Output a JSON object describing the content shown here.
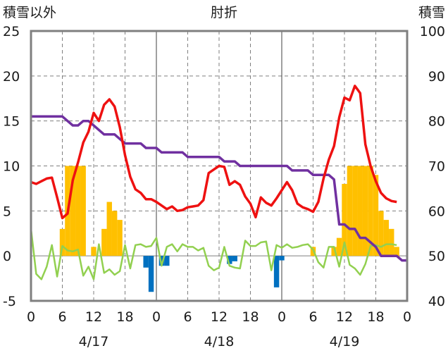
{
  "chart_data": {
    "type": "combo",
    "title": "肘折",
    "left_axis_label": "積雪以外",
    "right_axis_label": "積雪",
    "left_ylim": [
      -5,
      25
    ],
    "left_yticks": [
      -5,
      0,
      5,
      10,
      15,
      20,
      25
    ],
    "right_ylim": [
      40,
      100
    ],
    "right_yticks": [
      40,
      50,
      60,
      70,
      80,
      90,
      100
    ],
    "x_hour_range": [
      0,
      72
    ],
    "x_tick_labels": [
      "0",
      "6",
      "12",
      "18",
      "0",
      "6",
      "12",
      "18",
      "0",
      "6",
      "12",
      "18",
      "0"
    ],
    "date_labels": [
      "4/17",
      "4/18",
      "4/19"
    ],
    "colors": {
      "temperature": "#ee1111",
      "snow_depth": "#7030a0",
      "wind": "#92d050",
      "snowfall": "#ffc000",
      "precipitation": "#0070c0",
      "axis": "#7f7f7f",
      "grid": "#7f7f7f"
    },
    "series": [
      {
        "name": "temperature",
        "axis": "left",
        "values": [
          8.2,
          8.0,
          8.3,
          8.6,
          8.7,
          6.5,
          4.2,
          4.7,
          8.4,
          10.4,
          12.6,
          13.8,
          15.9,
          15.0,
          16.8,
          17.4,
          16.6,
          14.3,
          11.2,
          8.8,
          7.4,
          7.0,
          6.3,
          6.3,
          6.0,
          5.6,
          5.2,
          5.5,
          5.0,
          5.1,
          5.4,
          5.5,
          5.6,
          6.2,
          9.2,
          9.6,
          10.0,
          9.9,
          7.9,
          8.3,
          7.9,
          6.6,
          5.8,
          4.3,
          6.5,
          5.9,
          5.6,
          6.4,
          7.3,
          8.2,
          7.3,
          5.8,
          5.4,
          5.2,
          4.9,
          6.0,
          8.6,
          10.7,
          12.2,
          15.4,
          17.6,
          17.3,
          18.9,
          18.1,
          12.4,
          10.0,
          8.3,
          7.0,
          6.4,
          6.1,
          6.0
        ]
      },
      {
        "name": "snow_depth",
        "axis": "right",
        "values": [
          81,
          81,
          81,
          81,
          81,
          81,
          81,
          80,
          79,
          79,
          80,
          80,
          79,
          78,
          77,
          77,
          77,
          76,
          75,
          75,
          75,
          75,
          74,
          74,
          74,
          73,
          73,
          73,
          73,
          73,
          72,
          72,
          72,
          72,
          72,
          72,
          72,
          71,
          71,
          71,
          70,
          70,
          70,
          70,
          70,
          70,
          70,
          70,
          70,
          70,
          69,
          69,
          69,
          69,
          68,
          68,
          68,
          68,
          67,
          57,
          57,
          56,
          56,
          54,
          54,
          53,
          52,
          50,
          50,
          50,
          50,
          49,
          49
        ]
      },
      {
        "name": "wind",
        "axis": "left",
        "values": [
          3.0,
          -2.0,
          -2.6,
          -1.2,
          1.2,
          -2.3,
          1.1,
          0.6,
          0.5,
          0.7,
          -2.2,
          -1.2,
          -2.6,
          1.3,
          -1.9,
          -1.5,
          -2.1,
          -1.7,
          1.2,
          -1.4,
          1.2,
          1.3,
          1.0,
          1.1,
          2.0,
          -1.1,
          1.0,
          1.3,
          0.5,
          1.3,
          1.0,
          1.0,
          0.6,
          0.9,
          -1.1,
          -1.6,
          -1.3,
          1.0,
          -1.1,
          -1.3,
          -1.4,
          1.7,
          1.1,
          1.1,
          1.5,
          1.6,
          -1.6,
          1.2,
          0.9,
          1.3,
          0.9,
          1.0,
          1.2,
          1.3,
          0.7,
          -0.7,
          -1.3,
          1.0,
          1.0,
          -1.2,
          1.5,
          -1.0,
          -1.4,
          -2.1,
          -0.9,
          1.1,
          1.2,
          1.0,
          1.3,
          1.3,
          1.2
        ]
      },
      {
        "name": "snowfall",
        "axis": "left",
        "start_hour": 0,
        "values": [
          0,
          0,
          0,
          0,
          0,
          0,
          3,
          10,
          10,
          10,
          10,
          0,
          1,
          0,
          3,
          6,
          5,
          4,
          0,
          0,
          0,
          0,
          0,
          0,
          0,
          0,
          0,
          0,
          0,
          0,
          0,
          0,
          0,
          0,
          0,
          0,
          0,
          0,
          0,
          0,
          0,
          0,
          0,
          0,
          0,
          0,
          0,
          0,
          0,
          0,
          0,
          0,
          0,
          0,
          0,
          0,
          0,
          0,
          0,
          0,
          0,
          0,
          0,
          0,
          0,
          0,
          0,
          0,
          0,
          0,
          0,
          0,
          0
        ]
      },
      {
        "name": "snowfall_4_19",
        "axis": "left",
        "start_hour": 48,
        "values": [
          0,
          0,
          0,
          0,
          0,
          0,
          1,
          0,
          0,
          0,
          1,
          2,
          8,
          10,
          10,
          10,
          10,
          10,
          9,
          5,
          4,
          3,
          1,
          0
        ]
      },
      {
        "name": "precipitation",
        "axis": "left",
        "values": [
          0,
          0,
          0,
          0,
          0,
          0,
          0,
          0,
          0,
          0,
          0,
          0,
          0,
          0,
          0,
          0,
          0,
          0,
          0,
          0,
          0,
          0,
          -1.3,
          -4.0,
          0,
          -1.1,
          -1.1,
          0,
          0,
          0,
          0,
          0,
          0,
          0,
          0,
          0,
          0,
          0,
          -0.9,
          -0.6,
          0,
          0,
          0,
          0,
          0,
          0,
          0,
          -3.5,
          -0.5,
          0,
          0,
          0,
          0,
          0,
          0,
          0,
          0,
          0,
          0,
          0,
          0,
          0,
          0,
          0,
          0,
          0,
          0,
          0,
          0,
          0,
          0,
          0,
          0
        ]
      }
    ]
  }
}
